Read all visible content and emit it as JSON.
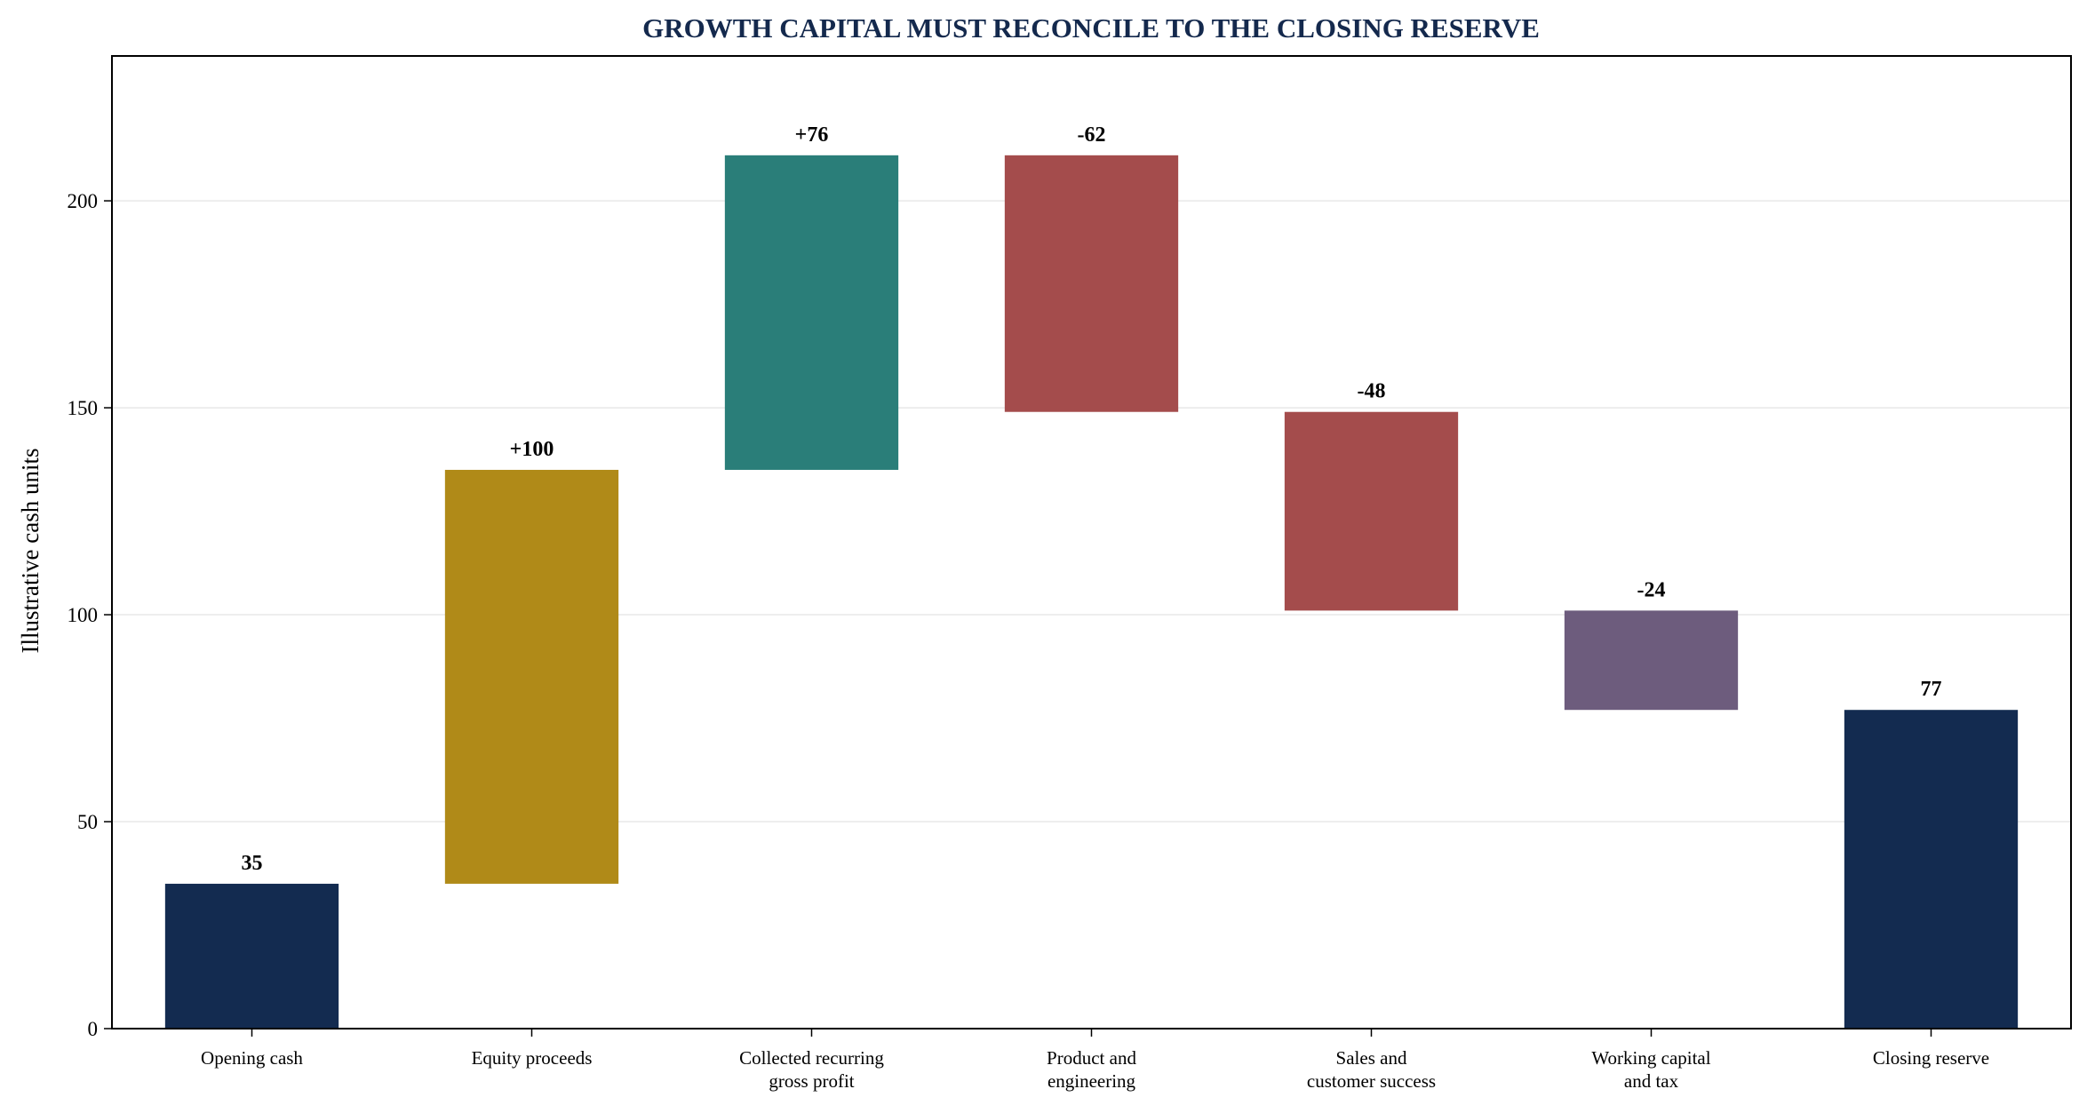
{
  "chart_data": {
    "type": "bar",
    "subtype": "waterfall",
    "title": "GROWTH CAPITAL MUST RECONCILE TO THE CLOSING RESERVE",
    "xlabel": "",
    "ylabel": "Illustrative cash units",
    "ylim": [
      0,
      235
    ],
    "yticks": [
      0,
      50,
      100,
      150,
      200
    ],
    "grid": "horizontal",
    "categories": [
      "Opening cash",
      "Equity proceeds",
      "Collected recurring\ngross profit",
      "Product and\nengineering",
      "Sales and\ncustomer success",
      "Working capital\nand tax",
      "Closing reserve"
    ],
    "steps": [
      {
        "kind": "total",
        "value": 35,
        "label": "35",
        "color": "#132b50"
      },
      {
        "kind": "delta",
        "value": 100,
        "label": "+100",
        "color": "#b08a18"
      },
      {
        "kind": "delta",
        "value": 76,
        "label": "+76",
        "color": "#2a7e79"
      },
      {
        "kind": "delta",
        "value": -62,
        "label": "-62",
        "color": "#a44c4c"
      },
      {
        "kind": "delta",
        "value": -48,
        "label": "-48",
        "color": "#a44c4c"
      },
      {
        "kind": "delta",
        "value": -24,
        "label": "-24",
        "color": "#6d5c7d"
      },
      {
        "kind": "total",
        "value": 77,
        "label": "77",
        "color": "#132b50"
      }
    ]
  }
}
